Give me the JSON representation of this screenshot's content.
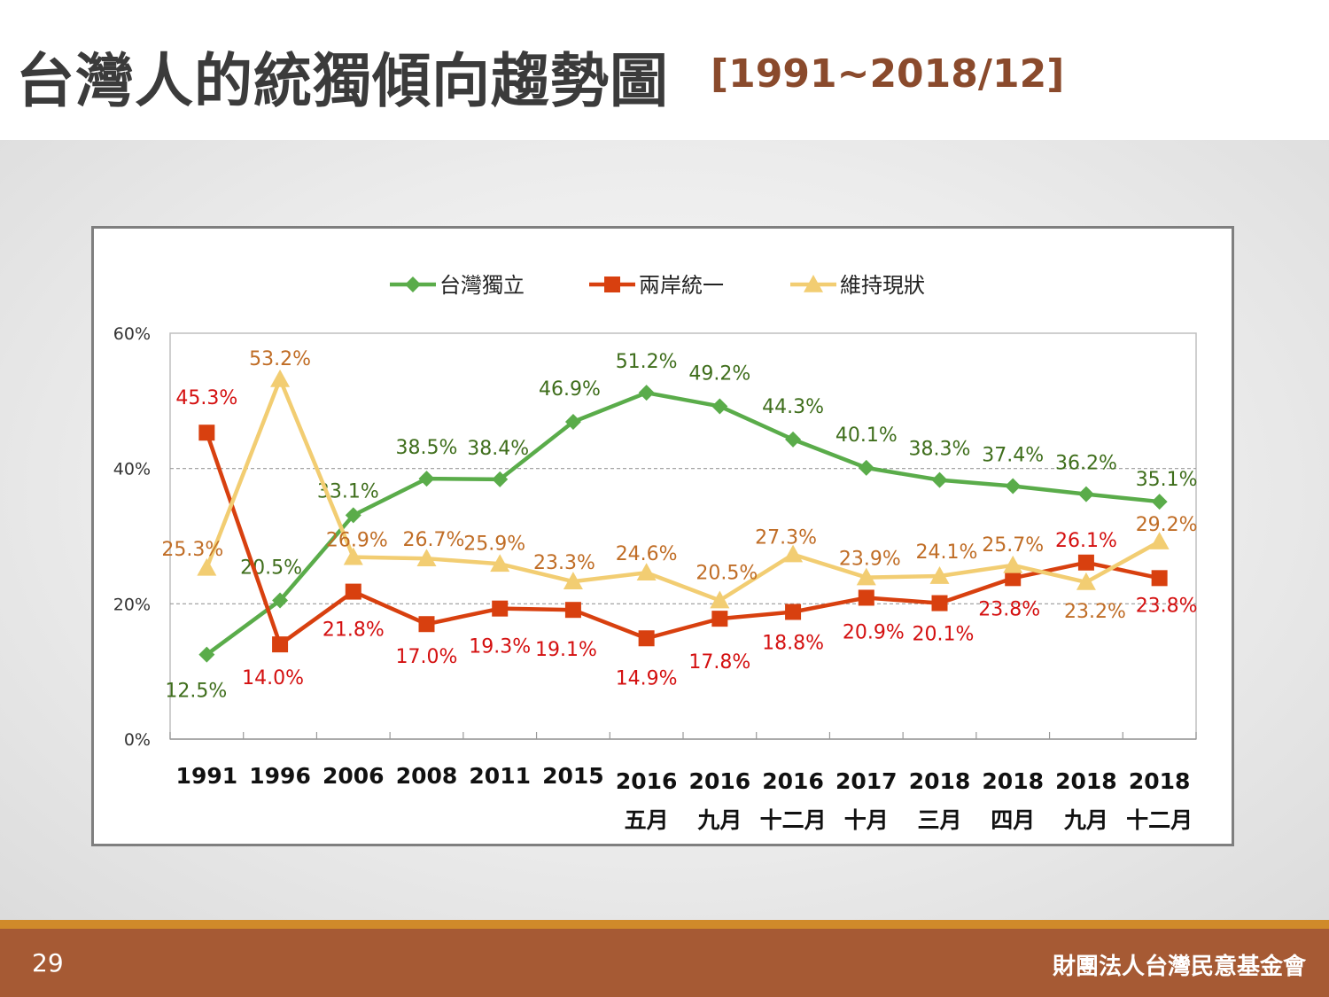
{
  "title": {
    "main": "台灣人的統獨傾向趨勢圖",
    "sub": "[1991~2018/12]"
  },
  "footer": {
    "page_number": "29",
    "org": "財團法人台灣民意基金會"
  },
  "colors": {
    "independence": "#5aac4a",
    "independence_label": "#3f6e1c",
    "unification": "#d8400f",
    "unification_label": "#d41010",
    "status_quo": "#f2cd72",
    "status_quo_label": "#c06d26",
    "axis": "#999999",
    "footer": "#a65a34",
    "title_sub": "#8a4a2c"
  },
  "chart_data": {
    "type": "line",
    "x": [
      [
        "1991"
      ],
      [
        "1996"
      ],
      [
        "2006"
      ],
      [
        "2008"
      ],
      [
        "2011"
      ],
      [
        "2015"
      ],
      [
        "2016",
        "五月"
      ],
      [
        "2016",
        "九月"
      ],
      [
        "2016",
        "十二月"
      ],
      [
        "2017",
        "十月"
      ],
      [
        "2018",
        "三月"
      ],
      [
        "2018",
        "四月"
      ],
      [
        "2018",
        "九月"
      ],
      [
        "2018",
        "十二月"
      ]
    ],
    "ylim": [
      0,
      60
    ],
    "yticks": [
      0,
      20,
      40,
      60
    ],
    "ytick_labels": [
      "0%",
      "20%",
      "40%",
      "60%"
    ],
    "grid": "dashed horizontal at 20% and 40%",
    "legend_position": "top-center",
    "series": [
      {
        "name": "台灣獨立",
        "marker": "diamond",
        "color_key": "independence",
        "values": [
          12.5,
          20.5,
          33.1,
          38.5,
          38.4,
          46.9,
          51.2,
          49.2,
          44.3,
          40.1,
          38.3,
          37.4,
          36.2,
          35.1
        ],
        "labels": [
          "12.5%",
          "20.5%",
          "33.1%",
          "38.5%",
          "38.4%",
          "46.9%",
          "51.2%",
          "49.2%",
          "44.3%",
          "40.1%",
          "38.3%",
          "37.4%",
          "36.2%",
          "35.1%"
        ]
      },
      {
        "name": "兩岸統一",
        "marker": "square",
        "color_key": "unification",
        "values": [
          45.3,
          14.0,
          21.8,
          17.0,
          19.3,
          19.1,
          14.9,
          17.8,
          18.8,
          20.9,
          20.1,
          23.8,
          26.1,
          23.8
        ],
        "labels": [
          "45.3%",
          "14.0%",
          "21.8%",
          "17.0%",
          "19.3%",
          "19.1%",
          "14.9%",
          "17.8%",
          "18.8%",
          "20.9%",
          "20.1%",
          "23.8%",
          "26.1%",
          "23.8%"
        ]
      },
      {
        "name": "維持現狀",
        "marker": "triangle",
        "color_key": "status_quo",
        "values": [
          25.3,
          53.2,
          26.9,
          26.7,
          25.9,
          23.3,
          24.6,
          20.5,
          27.3,
          23.9,
          24.1,
          25.7,
          23.2,
          29.2
        ],
        "labels": [
          "25.3%",
          "53.2%",
          "26.9%",
          "26.7%",
          "25.9%",
          "23.3%",
          "24.6%",
          "20.5%",
          "27.3%",
          "23.9%",
          "24.1%",
          "25.7%",
          "23.2%",
          "29.2%"
        ]
      }
    ]
  }
}
